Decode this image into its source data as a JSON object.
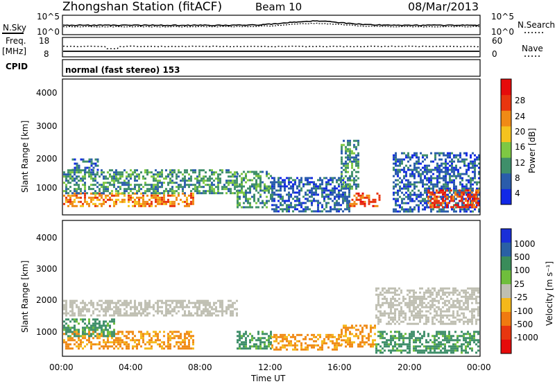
{
  "header": {
    "station_title": "Zhongshan Station (fitACF)",
    "beam": "Beam 10",
    "date": "08/Mar/2013"
  },
  "noise_panel": {
    "left_label": "N.Sky",
    "right_label": "N.Search",
    "left_ticks": [
      "10^5",
      "10^0"
    ],
    "right_ticks": [
      "10^5",
      "10^0"
    ]
  },
  "freq_panel": {
    "left_label_top": "Freq.",
    "left_label_unit": "[MHz]",
    "left_ticks": [
      "18",
      "8"
    ],
    "right_label": "Nave",
    "right_ticks": [
      "60",
      "0"
    ]
  },
  "cpid": {
    "label": "CPID",
    "mode_text": "normal (fast stereo) 153"
  },
  "x_axis": {
    "label": "Time UT",
    "ticks": [
      "00:00",
      "04:00",
      "08:00",
      "12:00",
      "16:00",
      "20:00",
      "00:00"
    ]
  },
  "chart_data": [
    {
      "type": "heatmap",
      "name": "power",
      "ylabel": "Slant Range [km]",
      "y_ticks": [
        "1000",
        "2000",
        "3000",
        "4000"
      ],
      "ylim": [
        180,
        4560
      ],
      "x_range_hours": [
        0,
        24
      ],
      "colorbar": {
        "label": "Power [dB]",
        "tick_labels": [
          "4",
          "8",
          "12",
          "16",
          "20",
          "24",
          "28"
        ],
        "colors": [
          "#1228e6",
          "#2a5cab",
          "#3f8f6a",
          "#7ec843",
          "#f5c31e",
          "#f08a16",
          "#e8350f",
          "#e60b0b"
        ]
      },
      "echo_regions_km": [
        {
          "t": [
            0.0,
            7.5
          ],
          "r": [
            450,
            900
          ],
          "level": 5
        },
        {
          "t": [
            0.0,
            10.0
          ],
          "r": [
            900,
            1650
          ],
          "level": 2
        },
        {
          "t": [
            0.5,
            2.0
          ],
          "r": [
            1650,
            2000
          ],
          "level": 1
        },
        {
          "t": [
            10.0,
            12.0
          ],
          "r": [
            400,
            1600
          ],
          "level": 2
        },
        {
          "t": [
            12.0,
            16.5
          ],
          "r": [
            300,
            1400
          ],
          "level": 1
        },
        {
          "t": [
            16.5,
            18.2
          ],
          "r": [
            450,
            900
          ],
          "level": 6
        },
        {
          "t": [
            16.0,
            17.0
          ],
          "r": [
            1000,
            2600
          ],
          "level": 2
        },
        {
          "t": [
            19.0,
            24.0
          ],
          "r": [
            300,
            2200
          ],
          "level": 1
        },
        {
          "t": [
            21.0,
            24.0
          ],
          "r": [
            400,
            1000
          ],
          "level": 6
        }
      ]
    },
    {
      "type": "heatmap",
      "name": "velocity",
      "ylabel": "Slant Range [km]",
      "y_ticks": [
        "1000",
        "2000",
        "3000",
        "4000"
      ],
      "ylim": [
        180,
        4560
      ],
      "x_range_hours": [
        0,
        24
      ],
      "colorbar": {
        "label": "Velocity [m s⁻¹]",
        "tick_labels": [
          "1000",
          "500",
          "100",
          "25",
          "-25",
          "-100",
          "-500",
          "-1000"
        ],
        "colors": [
          "#1a2fd8",
          "#2a60a4",
          "#3a8c5a",
          "#6fbe3c",
          "#bfbfb2",
          "#f5b81a",
          "#f07a10",
          "#e8360f",
          "#e60b0b"
        ]
      },
      "echo_regions_km": [
        {
          "t": [
            0.0,
            10.0
          ],
          "r": [
            1500,
            2000
          ],
          "color": "ground-scatter-grey"
        },
        {
          "t": [
            0.0,
            7.5
          ],
          "r": [
            400,
            1000
          ],
          "color": "orange"
        },
        {
          "t": [
            0.0,
            3.0
          ],
          "r": [
            800,
            1400
          ],
          "color": "green"
        },
        {
          "t": [
            10.0,
            12.0
          ],
          "r": [
            400,
            1000
          ],
          "color": "green"
        },
        {
          "t": [
            12.0,
            16.0
          ],
          "r": [
            400,
            900
          ],
          "color": "orange"
        },
        {
          "t": [
            16.0,
            18.0
          ],
          "r": [
            500,
            1200
          ],
          "color": "orange"
        },
        {
          "t": [
            18.0,
            24.0
          ],
          "r": [
            300,
            1000
          ],
          "color": "green"
        },
        {
          "t": [
            18.0,
            24.0
          ],
          "r": [
            1200,
            2400
          ],
          "color": "ground-scatter-grey"
        }
      ]
    }
  ]
}
